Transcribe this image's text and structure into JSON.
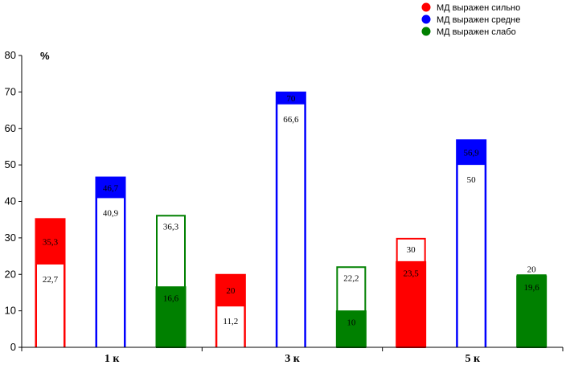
{
  "chart_data": {
    "type": "bar",
    "title": "",
    "xlabel": "",
    "ylabel": "%",
    "ylim": [
      0,
      80
    ],
    "yticks": [
      0,
      10,
      20,
      30,
      40,
      50,
      60,
      70,
      80
    ],
    "grid": false,
    "legend_position": "top-right",
    "categories": [
      "1 к",
      "3 к",
      "5 к"
    ],
    "series": [
      {
        "name": "МД выражен сильно",
        "color": "#ff0000",
        "values": [
          {
            "filled": 35.3,
            "filled_label": "35,3",
            "outline": 22.7,
            "outline_label": "22,7"
          },
          {
            "filled": 20,
            "filled_label": "20",
            "outline": 11.2,
            "outline_label": "11,2"
          },
          {
            "filled": 23.5,
            "filled_label": "23,5",
            "outline": 30,
            "outline_label": "30"
          }
        ]
      },
      {
        "name": "МД выражен средне",
        "color": "#0000ff",
        "values": [
          {
            "filled": 46.7,
            "filled_label": "46,7",
            "outline": 40.9,
            "outline_label": "40,9"
          },
          {
            "filled": 70,
            "filled_label": "70",
            "outline": 66.6,
            "outline_label": "66,6"
          },
          {
            "filled": 56.9,
            "filled_label": "56,9",
            "outline": 50,
            "outline_label": "50"
          }
        ]
      },
      {
        "name": "МД выражен слабо",
        "color": "#008000",
        "values": [
          {
            "filled": 16.6,
            "filled_label": "16,6",
            "outline": 36.3,
            "outline_label": "36,3"
          },
          {
            "filled": 10,
            "filled_label": "10",
            "outline": 22.2,
            "outline_label": "22,2"
          },
          {
            "filled": 19.6,
            "filled_label": "19,6",
            "outline": 20,
            "outline_label": "20"
          }
        ]
      }
    ]
  }
}
